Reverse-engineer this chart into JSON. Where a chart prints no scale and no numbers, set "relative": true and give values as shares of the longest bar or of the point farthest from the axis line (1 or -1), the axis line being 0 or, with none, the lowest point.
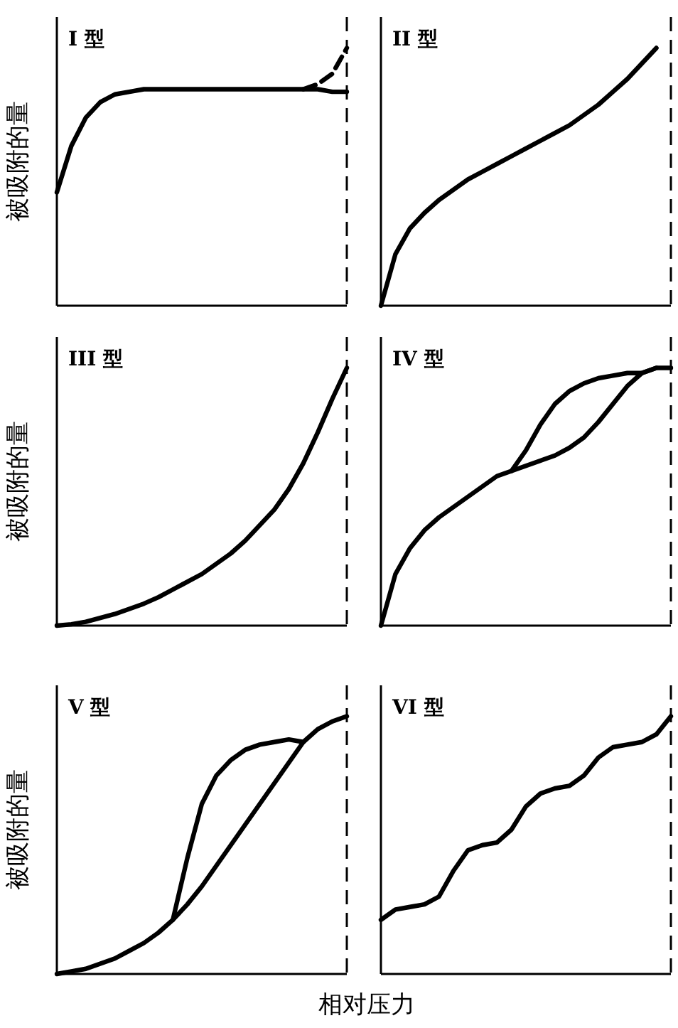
{
  "chart_data": [
    {
      "type": "line",
      "relative": true,
      "title": "I 型",
      "ylabel": "被吸附的量",
      "categories": [
        null,
        null,
        null,
        null,
        null,
        null,
        null,
        null,
        null,
        null,
        null,
        null,
        null,
        null,
        null,
        null,
        null,
        null,
        null,
        null,
        null
      ],
      "series": [
        {
          "color": "#000000",
          "values": [
            0.44,
            0.62,
            0.73,
            0.79,
            0.82,
            0.83,
            0.84,
            0.84,
            0.84,
            0.84,
            0.84,
            0.84,
            0.84,
            0.84,
            0.84,
            0.84,
            0.84,
            0.84,
            0.84,
            0.83,
            0.83
          ]
        },
        {
          "color": "#000000",
          "line_style": "dashed",
          "values": [
            null,
            null,
            null,
            null,
            null,
            null,
            null,
            null,
            null,
            null,
            null,
            null,
            null,
            null,
            null,
            null,
            null,
            0.84,
            0.86,
            0.9,
            1.0
          ]
        }
      ]
    },
    {
      "type": "line",
      "relative": true,
      "title": "II 型",
      "categories": [
        null,
        null,
        null,
        null,
        null,
        null,
        null,
        null,
        null,
        null,
        null,
        null,
        null,
        null,
        null,
        null,
        null,
        null,
        null,
        null,
        null
      ],
      "series": [
        {
          "color": "#000000",
          "values": [
            0,
            0.2,
            0.3,
            0.36,
            0.41,
            0.45,
            0.49,
            0.52,
            0.55,
            0.58,
            0.61,
            0.64,
            0.67,
            0.7,
            0.74,
            0.78,
            0.83,
            0.88,
            0.94,
            1.0,
            null
          ]
        }
      ]
    },
    {
      "type": "line",
      "relative": true,
      "title": "III 型",
      "ylabel": "被吸附的量",
      "categories": [
        null,
        null,
        null,
        null,
        null,
        null,
        null,
        null,
        null,
        null,
        null,
        null,
        null,
        null,
        null,
        null,
        null,
        null,
        null,
        null,
        null
      ],
      "series": [
        {
          "color": "#000000",
          "values": [
            0,
            0.005,
            0.015,
            0.03,
            0.045,
            0.065,
            0.085,
            0.11,
            0.14,
            0.17,
            0.2,
            0.24,
            0.28,
            0.33,
            0.39,
            0.45,
            0.53,
            0.63,
            0.75,
            0.88,
            1.0
          ]
        }
      ]
    },
    {
      "type": "line",
      "relative": true,
      "title": "IV 型",
      "categories": [
        null,
        null,
        null,
        null,
        null,
        null,
        null,
        null,
        null,
        null,
        null,
        null,
        null,
        null,
        null,
        null,
        null,
        null,
        null,
        null,
        null
      ],
      "series": [
        {
          "color": "#000000",
          "values": [
            0,
            0.2,
            0.3,
            0.37,
            0.42,
            0.46,
            0.5,
            0.54,
            0.58,
            0.6,
            0.62,
            0.64,
            0.66,
            0.69,
            0.73,
            0.79,
            0.86,
            0.93,
            0.98,
            1.0,
            1.0
          ]
        },
        {
          "color": "#000000",
          "values": [
            null,
            null,
            null,
            null,
            null,
            null,
            null,
            null,
            null,
            0.6,
            0.68,
            0.78,
            0.86,
            0.91,
            0.94,
            0.96,
            0.97,
            0.98,
            0.98,
            1.0,
            null
          ]
        }
      ]
    },
    {
      "type": "line",
      "relative": true,
      "title": "V 型",
      "ylabel": "被吸附的量",
      "xlabel": "相对压力",
      "categories": [
        null,
        null,
        null,
        null,
        null,
        null,
        null,
        null,
        null,
        null,
        null,
        null,
        null,
        null,
        null,
        null,
        null,
        null,
        null,
        null,
        null
      ],
      "series": [
        {
          "color": "#000000",
          "values": [
            0,
            0.01,
            0.02,
            0.04,
            0.06,
            0.09,
            0.12,
            0.16,
            0.21,
            0.27,
            0.34,
            0.42,
            0.5,
            0.58,
            0.66,
            0.74,
            0.82,
            0.9,
            0.95,
            0.98,
            1.0
          ]
        },
        {
          "color": "#000000",
          "values": [
            null,
            null,
            null,
            null,
            null,
            null,
            null,
            null,
            0.21,
            0.45,
            0.66,
            0.77,
            0.83,
            0.87,
            0.89,
            0.9,
            0.91,
            0.9,
            null,
            null,
            null
          ]
        }
      ]
    },
    {
      "type": "line",
      "relative": true,
      "title": "VI 型",
      "categories": [
        null,
        null,
        null,
        null,
        null,
        null,
        null,
        null,
        null,
        null,
        null,
        null,
        null,
        null,
        null,
        null,
        null,
        null,
        null,
        null,
        null
      ],
      "series": [
        {
          "color": "#000000",
          "values": [
            0.21,
            0.25,
            0.26,
            0.27,
            0.3,
            0.4,
            0.48,
            0.5,
            0.51,
            0.56,
            0.65,
            0.7,
            0.72,
            0.73,
            0.77,
            0.84,
            0.88,
            0.89,
            0.9,
            0.93,
            1.0
          ]
        }
      ]
    }
  ]
}
